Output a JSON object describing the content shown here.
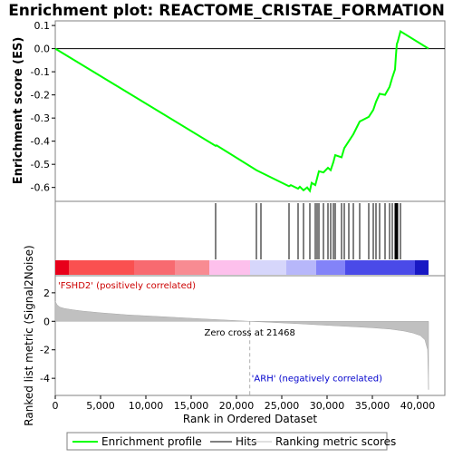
{
  "chart_data": {
    "type": "line",
    "title": "Enrichment plot: REACTOME_CRISTAE_FORMATION",
    "top_panel": {
      "ylabel": "Enrichment score (ES)",
      "ylim": [
        -0.66,
        0.12
      ],
      "yticks": [
        0.1,
        0.0,
        -0.1,
        -0.2,
        -0.3,
        -0.4,
        -0.5,
        -0.6
      ],
      "ytick_labels": [
        "0.1",
        "0.0",
        "-0.1",
        "-0.2",
        "-0.3",
        "-0.4",
        "-0.5",
        "-0.6"
      ],
      "grid": false,
      "series": [
        {
          "name": "Enrichment profile",
          "color": "#00ff00",
          "x": [
            0,
            17700,
            17800,
            22200,
            22700,
            25800,
            26000,
            26800,
            27000,
            27400,
            27800,
            28100,
            28300,
            28700,
            28900,
            29100,
            29600,
            30100,
            30400,
            30700,
            30900,
            31600,
            31900,
            32400,
            32900,
            33600,
            34600,
            35100,
            35400,
            35800,
            36400,
            36900,
            37200,
            37500,
            37600,
            37700,
            37800,
            38100,
            41200
          ],
          "y": [
            0.0,
            -0.42,
            -0.418,
            -0.525,
            -0.535,
            -0.595,
            -0.59,
            -0.605,
            -0.597,
            -0.612,
            -0.6,
            -0.615,
            -0.58,
            -0.59,
            -0.56,
            -0.53,
            -0.535,
            -0.515,
            -0.525,
            -0.49,
            -0.46,
            -0.47,
            -0.43,
            -0.4,
            -0.37,
            -0.315,
            -0.295,
            -0.265,
            -0.23,
            -0.195,
            -0.2,
            -0.165,
            -0.125,
            -0.09,
            -0.03,
            0.02,
            0.03,
            0.075,
            0.0
          ]
        }
      ]
    },
    "hits_panel": {
      "hit_positions": [
        17700,
        22200,
        22700,
        25800,
        26800,
        27400,
        28100,
        28700,
        28900,
        29100,
        29600,
        30100,
        30400,
        30700,
        30900,
        31600,
        31900,
        32400,
        32900,
        33600,
        34600,
        35100,
        35400,
        35800,
        36400,
        36900,
        37200,
        37500,
        37600,
        37700,
        37800,
        38100
      ],
      "color_bar": [
        {
          "from": 0,
          "to": 1500,
          "color": "#e8001a"
        },
        {
          "from": 1500,
          "to": 8700,
          "color": "#fa5050"
        },
        {
          "from": 8700,
          "to": 13200,
          "color": "#f86a70"
        },
        {
          "from": 13200,
          "to": 17000,
          "color": "#f88b92"
        },
        {
          "from": 17000,
          "to": 21500,
          "color": "#fdc0ec"
        },
        {
          "from": 21500,
          "to": 25500,
          "color": "#d6d6fb"
        },
        {
          "from": 25500,
          "to": 28800,
          "color": "#b7b7fa"
        },
        {
          "from": 28800,
          "to": 32000,
          "color": "#8383f8"
        },
        {
          "from": 32000,
          "to": 39700,
          "color": "#4a4ae8"
        },
        {
          "from": 39700,
          "to": 41200,
          "color": "#1818c4"
        }
      ]
    },
    "bottom_panel": {
      "ylabel": "Ranked list metric (Signal2Noise)",
      "xlabel": "Rank in Ordered Dataset",
      "ylim": [
        -5.2,
        3.2
      ],
      "xlim": [
        0,
        43000
      ],
      "yticks": [
        2,
        0,
        -2,
        -4
      ],
      "ytick_labels": [
        "2",
        "0",
        "-2",
        "-4"
      ],
      "xticks": [
        0,
        5000,
        10000,
        15000,
        20000,
        25000,
        30000,
        35000,
        40000
      ],
      "xtick_labels": [
        "0",
        "5,000",
        "10,000",
        "15,000",
        "20,000",
        "25,000",
        "30,000",
        "35,000",
        "40,000"
      ],
      "metric_curve": {
        "x": [
          0,
          200,
          500,
          1000,
          2000,
          3000,
          5000,
          8000,
          12000,
          16000,
          19000,
          21468,
          24000,
          27000,
          30000,
          33000,
          35000,
          37000,
          38500,
          39500,
          40300,
          40800,
          41100,
          41200
        ],
        "y": [
          1.4,
          1.15,
          1.0,
          0.9,
          0.8,
          0.72,
          0.6,
          0.45,
          0.32,
          0.18,
          0.08,
          0.0,
          -0.08,
          -0.17,
          -0.28,
          -0.38,
          -0.45,
          -0.55,
          -0.68,
          -0.82,
          -1.0,
          -1.3,
          -2.0,
          -4.8
        ]
      },
      "zero_cross": 21468,
      "zero_cross_label": "Zero cross at 21468",
      "pos_label": "'FSHD2' (positively correlated)",
      "neg_label": "'ARH' (negatively correlated)"
    },
    "legend": {
      "placement": "bottom",
      "items": [
        {
          "label": "Enrichment profile",
          "color": "#00ff00"
        },
        {
          "label": "Hits",
          "color": "#000000"
        },
        {
          "label": "Ranking metric scores",
          "color": "#c0c0c0"
        }
      ]
    }
  }
}
